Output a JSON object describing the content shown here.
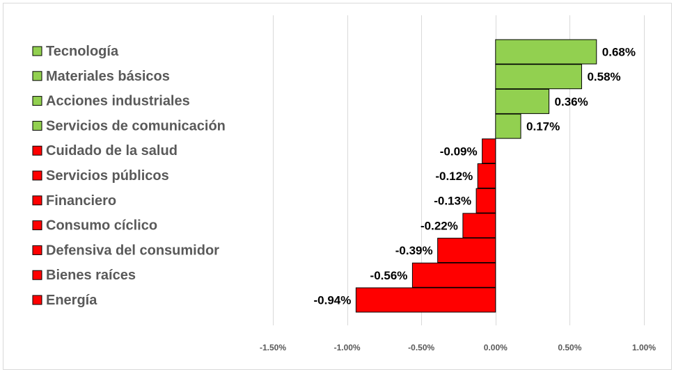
{
  "chart_data": {
    "type": "bar",
    "orientation": "horizontal",
    "categories": [
      "Tecnología",
      "Materiales básicos",
      "Acciones industriales",
      "Servicios de comunicación",
      "Cuidado de la salud",
      "Servicios públicos",
      "Financiero",
      "Consumo cíclico",
      "Defensiva del consumidor",
      "Bienes raíces",
      "Energía"
    ],
    "values": [
      0.68,
      0.58,
      0.36,
      0.17,
      -0.09,
      -0.12,
      -0.13,
      -0.22,
      -0.39,
      -0.56,
      -0.94
    ],
    "data_labels": [
      "0.68%",
      "0.58%",
      "0.36%",
      "0.17%",
      "-0.09%",
      "-0.12%",
      "-0.13%",
      "-0.22%",
      "-0.39%",
      "-0.56%",
      "-0.94%"
    ],
    "xlim": [
      -1.5,
      1.0
    ],
    "xticks": [
      -1.5,
      -1.0,
      -0.5,
      0.0,
      0.5,
      1.0
    ],
    "xtick_labels": [
      "-1.50%",
      "-1.00%",
      "-0.50%",
      "0.00%",
      "0.50%",
      "1.00%"
    ],
    "grid": "vertical",
    "legend": "left",
    "colors": {
      "positive": "#92d050",
      "negative": "#ff0000",
      "outline": "#000000",
      "grid": "#d9d9d9"
    },
    "title": "",
    "xlabel": "",
    "ylabel": ""
  }
}
